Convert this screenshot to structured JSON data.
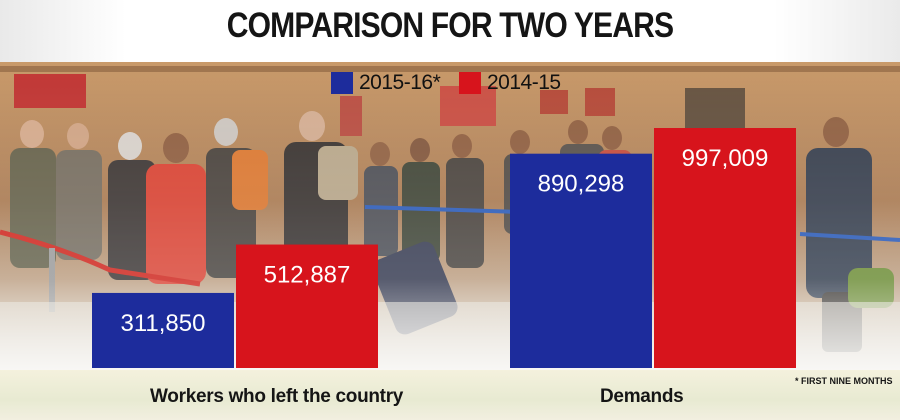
{
  "title": "COMPARISON FOR TWO YEARS",
  "footnote": "* FIRST NINE MONTHS",
  "colors": {
    "series_2015_16": "#1d2c9c",
    "series_2014_15": "#d7141c",
    "label_text": "#ffffff"
  },
  "chart_data": {
    "type": "bar",
    "title": "COMPARISON FOR TWO YEARS",
    "categories": [
      "Workers who left the country",
      "Demands"
    ],
    "series": [
      {
        "name": "2015-16*",
        "values": [
          311850,
          890298
        ],
        "labels": [
          "311,850",
          "890,298"
        ]
      },
      {
        "name": "2014-15",
        "values": [
          512887,
          997009
        ],
        "labels": [
          "512,887",
          "997,009"
        ]
      }
    ],
    "legend_position": "top-center",
    "axes_visible": false,
    "grid": false
  }
}
